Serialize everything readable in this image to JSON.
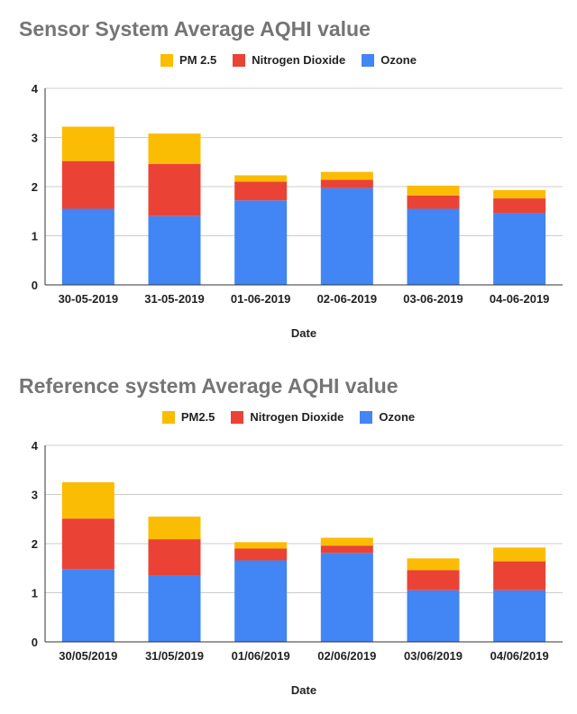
{
  "chart_data": [
    {
      "type": "bar",
      "stacked": true,
      "title": "Sensor System Average AQHI value",
      "xlabel": "Date",
      "ylabel": "",
      "ylim": [
        0,
        4
      ],
      "yticks": [
        "0",
        "1",
        "2",
        "3",
        "4"
      ],
      "grid": true,
      "legend_position": "top",
      "categories": [
        "30-05-2019",
        "31-05-2019",
        "01-06-2019",
        "02-06-2019",
        "03-06-2019",
        "04-06-2019"
      ],
      "series": [
        {
          "name": "Ozone",
          "color": "#4285f4",
          "values": [
            1.55,
            1.4,
            1.72,
            1.97,
            1.55,
            1.46
          ]
        },
        {
          "name": "Nitrogen Dioxide",
          "color": "#ea4335",
          "values": [
            0.97,
            1.06,
            0.38,
            0.17,
            0.27,
            0.3
          ]
        },
        {
          "name": "PM 2.5",
          "color": "#fbbc04",
          "values": [
            0.7,
            0.62,
            0.13,
            0.16,
            0.2,
            0.17
          ]
        }
      ],
      "legend": [
        {
          "name": "PM 2.5",
          "color": "#fbbc04"
        },
        {
          "name": "Nitrogen Dioxide",
          "color": "#ea4335"
        },
        {
          "name": "Ozone",
          "color": "#4285f4"
        }
      ]
    },
    {
      "type": "bar",
      "stacked": true,
      "title": "Reference system Average AQHI value",
      "xlabel": "Date",
      "ylabel": "",
      "ylim": [
        0,
        4
      ],
      "yticks": [
        "0",
        "1",
        "2",
        "3",
        "4"
      ],
      "grid": true,
      "legend_position": "top",
      "categories": [
        "30/05/2019",
        "31/05/2019",
        "01/06/2019",
        "02/06/2019",
        "03/06/2019",
        "04/06/2019"
      ],
      "series": [
        {
          "name": "Ozone",
          "color": "#4285f4",
          "values": [
            1.48,
            1.35,
            1.66,
            1.81,
            1.05,
            1.05
          ]
        },
        {
          "name": "Nitrogen Dioxide",
          "color": "#ea4335",
          "values": [
            1.03,
            0.74,
            0.24,
            0.15,
            0.41,
            0.59
          ]
        },
        {
          "name": "PM2.5",
          "color": "#fbbc04",
          "values": [
            0.74,
            0.46,
            0.13,
            0.16,
            0.24,
            0.28
          ]
        }
      ],
      "legend": [
        {
          "name": "PM2.5",
          "color": "#fbbc04"
        },
        {
          "name": "Nitrogen Dioxide",
          "color": "#ea4335"
        },
        {
          "name": "Ozone",
          "color": "#4285f4"
        }
      ]
    }
  ]
}
